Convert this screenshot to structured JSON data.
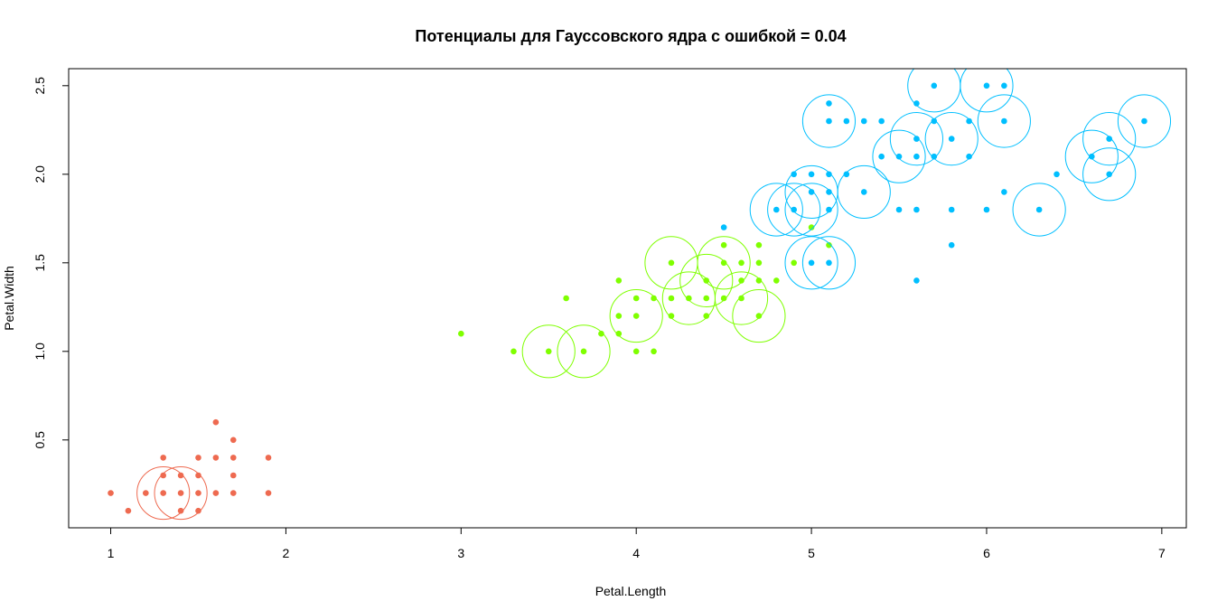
{
  "chart_data": {
    "type": "scatter",
    "title": "Потенциалы для Гауссовского ядра с ошибкой = 0.04",
    "xlabel": "Petal.Length",
    "ylabel": "Petal.Width",
    "xlim": [
      0.76,
      7.14
    ],
    "ylim": [
      0.004,
      2.596
    ],
    "x_ticks": [
      1,
      2,
      3,
      4,
      5,
      6,
      7
    ],
    "x_tick_labels": [
      "1",
      "2",
      "3",
      "4",
      "5",
      "6",
      "7"
    ],
    "y_ticks": [
      0.5,
      1.0,
      1.5,
      2.0,
      2.5
    ],
    "y_tick_labels": [
      "0.5",
      "1.0",
      "1.5",
      "2.0",
      "2.5"
    ],
    "grid": false,
    "colors": {
      "setosa": "#ee6a50",
      "versicolor": "#7fff00",
      "virginica": "#00bfff"
    },
    "circle_radius_x": 0.15,
    "series": [
      {
        "key": "setosa",
        "points": [
          [
            1.0,
            0.2
          ],
          [
            1.1,
            0.1
          ],
          [
            1.2,
            0.2
          ],
          [
            1.3,
            0.2
          ],
          [
            1.3,
            0.3
          ],
          [
            1.3,
            0.4
          ],
          [
            1.4,
            0.1
          ],
          [
            1.4,
            0.2
          ],
          [
            1.4,
            0.3
          ],
          [
            1.5,
            0.1
          ],
          [
            1.5,
            0.2
          ],
          [
            1.5,
            0.3
          ],
          [
            1.5,
            0.4
          ],
          [
            1.6,
            0.2
          ],
          [
            1.6,
            0.4
          ],
          [
            1.6,
            0.6
          ],
          [
            1.7,
            0.2
          ],
          [
            1.7,
            0.3
          ],
          [
            1.7,
            0.4
          ],
          [
            1.7,
            0.5
          ],
          [
            1.9,
            0.2
          ],
          [
            1.9,
            0.4
          ]
        ],
        "circles": [
          [
            1.3,
            0.2
          ],
          [
            1.4,
            0.2
          ]
        ]
      },
      {
        "key": "versicolor",
        "points": [
          [
            3.0,
            1.1
          ],
          [
            3.3,
            1.0
          ],
          [
            3.5,
            1.0
          ],
          [
            3.6,
            1.3
          ],
          [
            3.7,
            1.0
          ],
          [
            3.8,
            1.1
          ],
          [
            3.9,
            1.1
          ],
          [
            3.9,
            1.2
          ],
          [
            3.9,
            1.4
          ],
          [
            4.0,
            1.0
          ],
          [
            4.0,
            1.2
          ],
          [
            4.0,
            1.3
          ],
          [
            4.1,
            1.0
          ],
          [
            4.1,
            1.3
          ],
          [
            4.2,
            1.2
          ],
          [
            4.2,
            1.3
          ],
          [
            4.2,
            1.5
          ],
          [
            4.3,
            1.3
          ],
          [
            4.4,
            1.2
          ],
          [
            4.4,
            1.3
          ],
          [
            4.4,
            1.4
          ],
          [
            4.5,
            1.3
          ],
          [
            4.5,
            1.5
          ],
          [
            4.5,
            1.6
          ],
          [
            4.6,
            1.3
          ],
          [
            4.6,
            1.4
          ],
          [
            4.6,
            1.5
          ],
          [
            4.7,
            1.2
          ],
          [
            4.7,
            1.4
          ],
          [
            4.7,
            1.5
          ],
          [
            4.7,
            1.6
          ],
          [
            4.8,
            1.4
          ],
          [
            4.9,
            1.5
          ],
          [
            5.0,
            1.7
          ],
          [
            5.1,
            1.6
          ]
        ],
        "circles": [
          [
            3.5,
            1.0
          ],
          [
            3.7,
            1.0
          ],
          [
            4.0,
            1.2
          ],
          [
            4.2,
            1.5
          ],
          [
            4.3,
            1.3
          ],
          [
            4.4,
            1.4
          ],
          [
            4.5,
            1.5
          ],
          [
            4.6,
            1.3
          ],
          [
            4.7,
            1.2
          ]
        ]
      },
      {
        "key": "virginica",
        "points": [
          [
            4.5,
            1.7
          ],
          [
            4.8,
            1.8
          ],
          [
            4.9,
            1.8
          ],
          [
            4.9,
            2.0
          ],
          [
            5.0,
            1.5
          ],
          [
            5.0,
            1.9
          ],
          [
            5.0,
            2.0
          ],
          [
            5.1,
            1.5
          ],
          [
            5.1,
            1.8
          ],
          [
            5.1,
            1.9
          ],
          [
            5.1,
            2.0
          ],
          [
            5.1,
            2.3
          ],
          [
            5.1,
            2.4
          ],
          [
            5.2,
            2.0
          ],
          [
            5.2,
            2.3
          ],
          [
            5.3,
            1.9
          ],
          [
            5.3,
            2.3
          ],
          [
            5.4,
            2.1
          ],
          [
            5.4,
            2.3
          ],
          [
            5.5,
            1.8
          ],
          [
            5.5,
            2.1
          ],
          [
            5.6,
            1.4
          ],
          [
            5.6,
            1.8
          ],
          [
            5.6,
            2.1
          ],
          [
            5.6,
            2.2
          ],
          [
            5.6,
            2.4
          ],
          [
            5.7,
            2.1
          ],
          [
            5.7,
            2.3
          ],
          [
            5.7,
            2.5
          ],
          [
            5.8,
            1.6
          ],
          [
            5.8,
            1.8
          ],
          [
            5.8,
            2.2
          ],
          [
            5.9,
            2.1
          ],
          [
            5.9,
            2.3
          ],
          [
            6.0,
            1.8
          ],
          [
            6.0,
            2.5
          ],
          [
            6.1,
            1.9
          ],
          [
            6.1,
            2.3
          ],
          [
            6.1,
            2.5
          ],
          [
            6.3,
            1.8
          ],
          [
            6.4,
            2.0
          ],
          [
            6.6,
            2.1
          ],
          [
            6.7,
            2.0
          ],
          [
            6.7,
            2.2
          ],
          [
            6.9,
            2.3
          ]
        ],
        "circles": [
          [
            4.8,
            1.8
          ],
          [
            4.9,
            1.8
          ],
          [
            5.0,
            1.8
          ],
          [
            5.0,
            1.5
          ],
          [
            5.0,
            1.9
          ],
          [
            5.1,
            1.5
          ],
          [
            5.1,
            2.3
          ],
          [
            5.3,
            1.9
          ],
          [
            5.5,
            2.1
          ],
          [
            5.6,
            2.2
          ],
          [
            5.8,
            2.2
          ],
          [
            5.7,
            2.5
          ],
          [
            6.0,
            2.5
          ],
          [
            6.1,
            2.3
          ],
          [
            6.3,
            1.8
          ],
          [
            6.6,
            2.1
          ],
          [
            6.7,
            2.2
          ],
          [
            6.7,
            2.0
          ],
          [
            6.9,
            2.3
          ]
        ]
      }
    ]
  }
}
